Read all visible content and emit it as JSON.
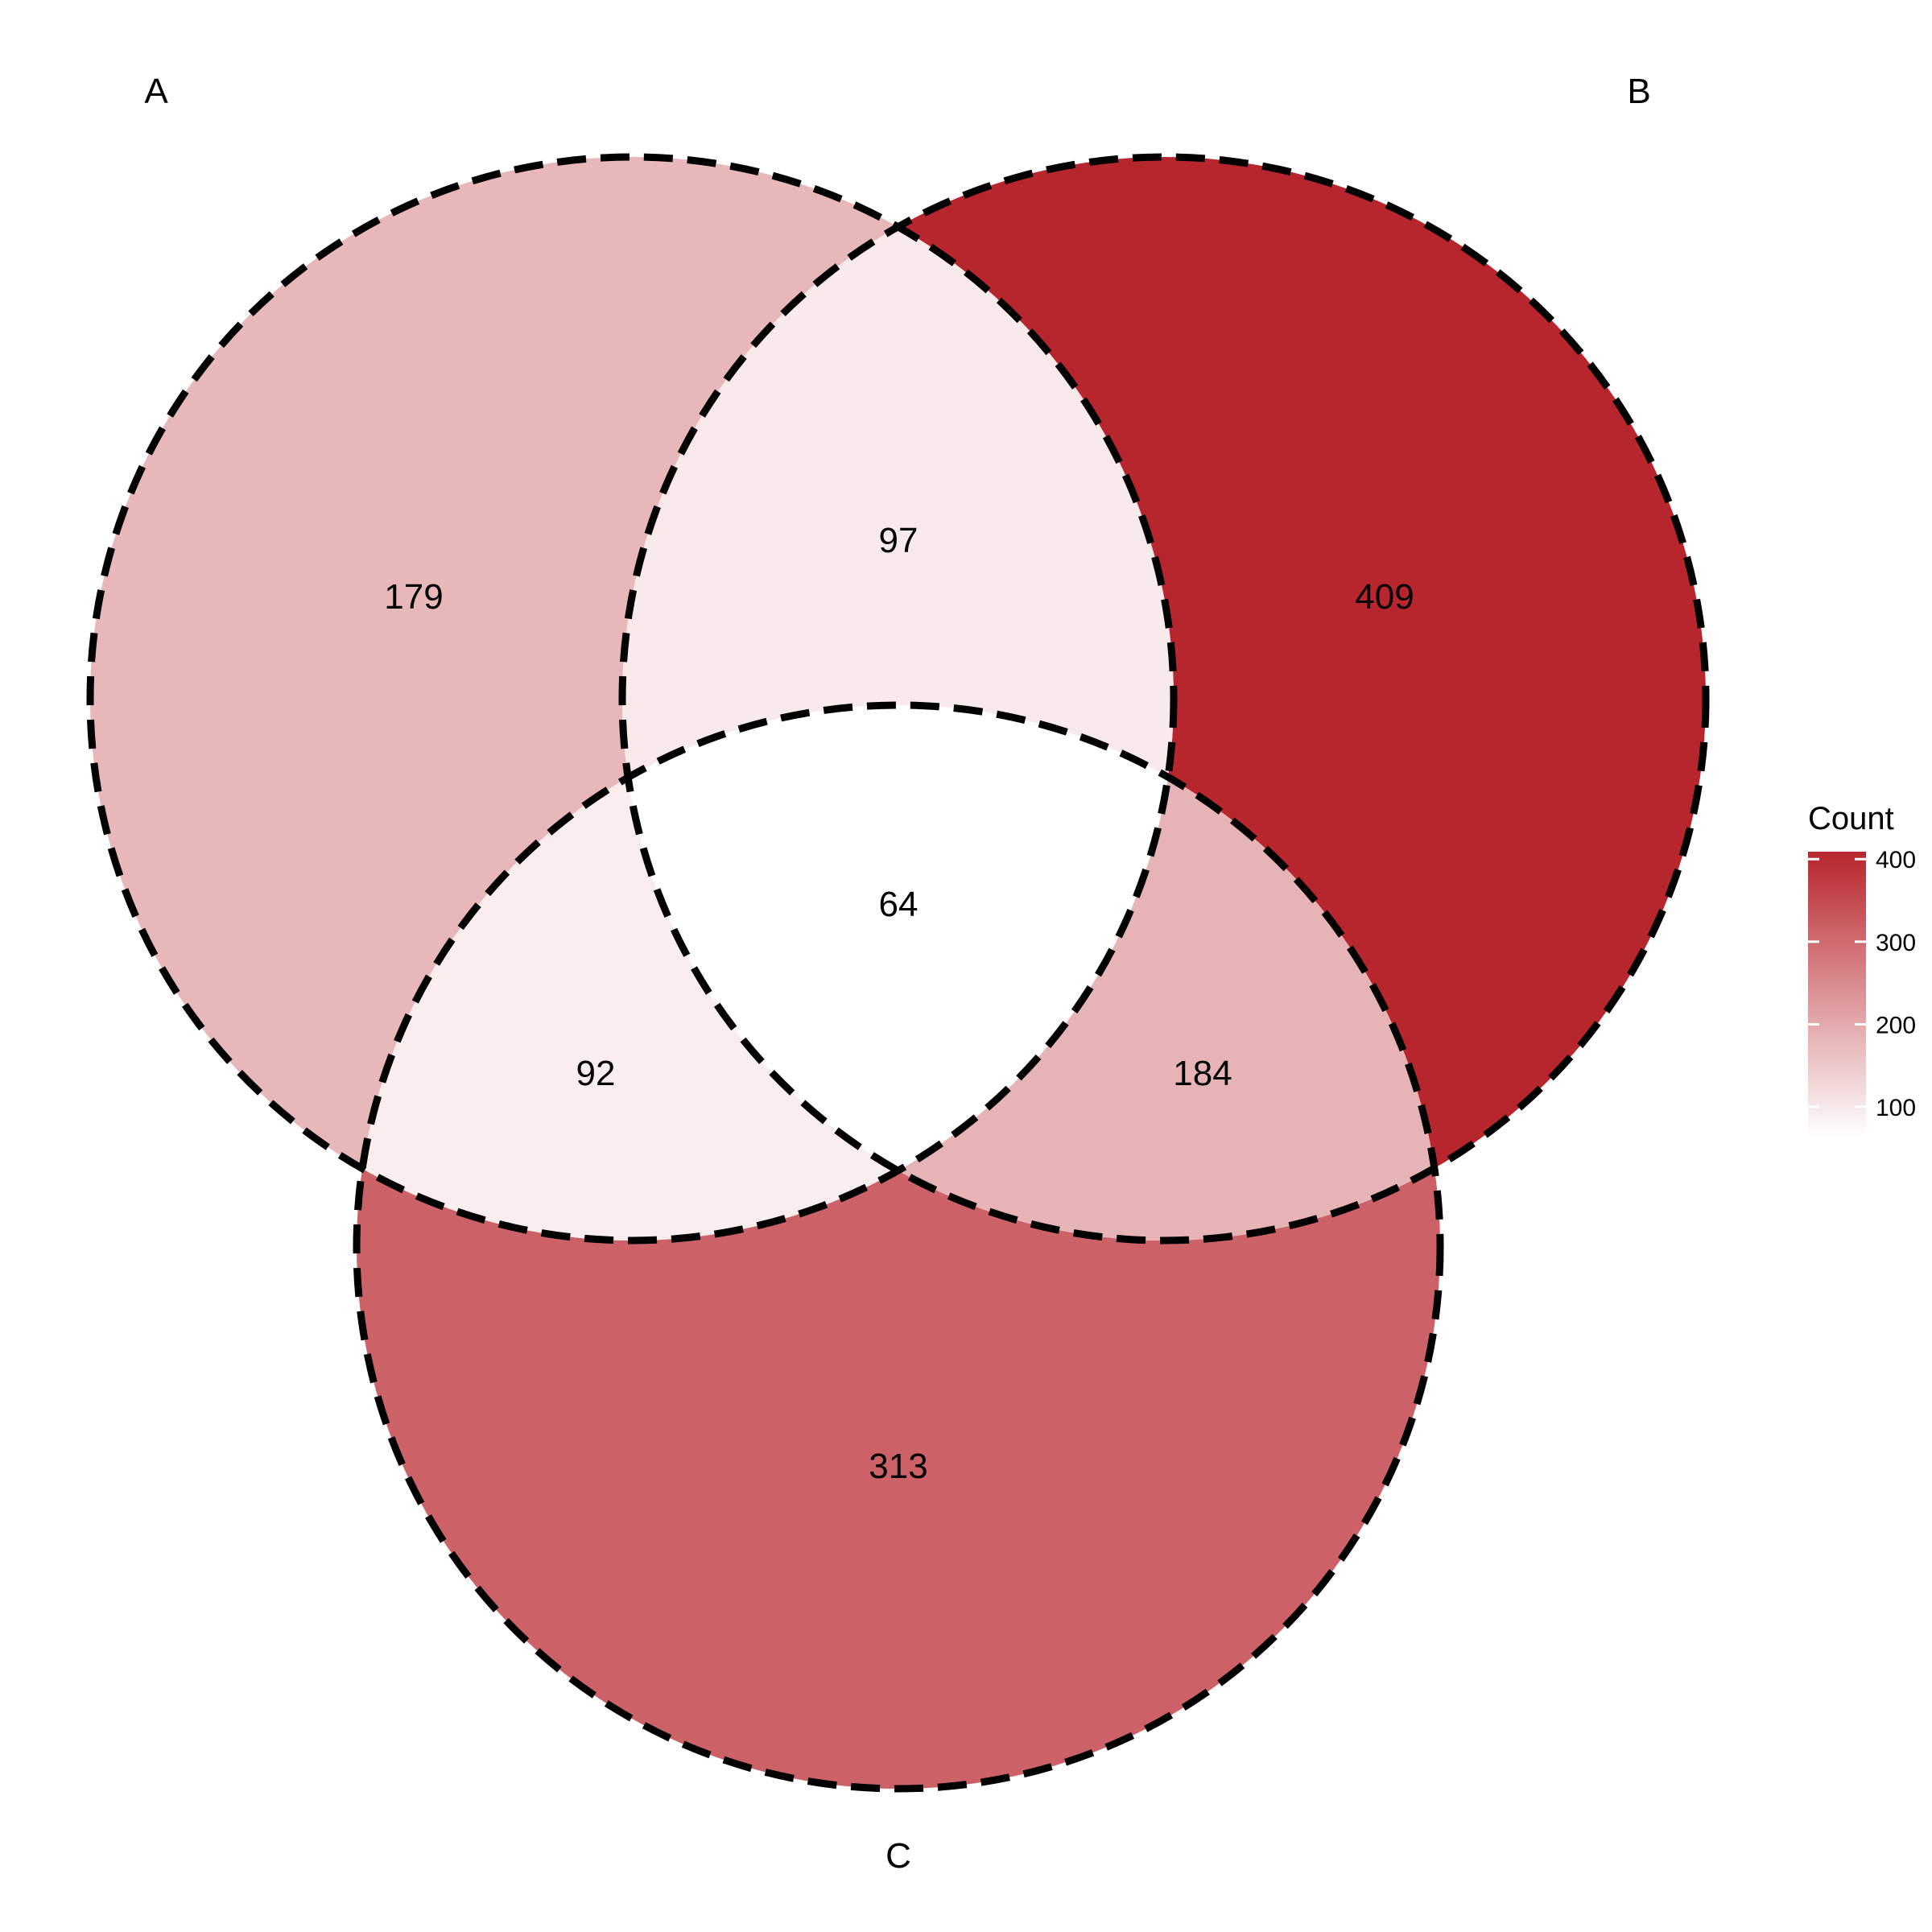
{
  "chart_data": {
    "type": "venn",
    "sets": [
      "A",
      "B",
      "C"
    ],
    "regions": [
      {
        "sets": [
          "A"
        ],
        "count": 179
      },
      {
        "sets": [
          "B"
        ],
        "count": 409
      },
      {
        "sets": [
          "C"
        ],
        "count": 313
      },
      {
        "sets": [
          "A",
          "B"
        ],
        "count": 97
      },
      {
        "sets": [
          "A",
          "C"
        ],
        "count": 92
      },
      {
        "sets": [
          "B",
          "C"
        ],
        "count": 184
      },
      {
        "sets": [
          "A",
          "B",
          "C"
        ],
        "count": 64
      }
    ],
    "legend": {
      "title": "Count",
      "placement": "right",
      "ticks": [
        100,
        200,
        300,
        400
      ],
      "range": [
        64,
        409
      ],
      "color_low": "#ffffff",
      "color_high": "#b8262d"
    },
    "outline": {
      "color": "#000000",
      "style": "dashed"
    }
  }
}
